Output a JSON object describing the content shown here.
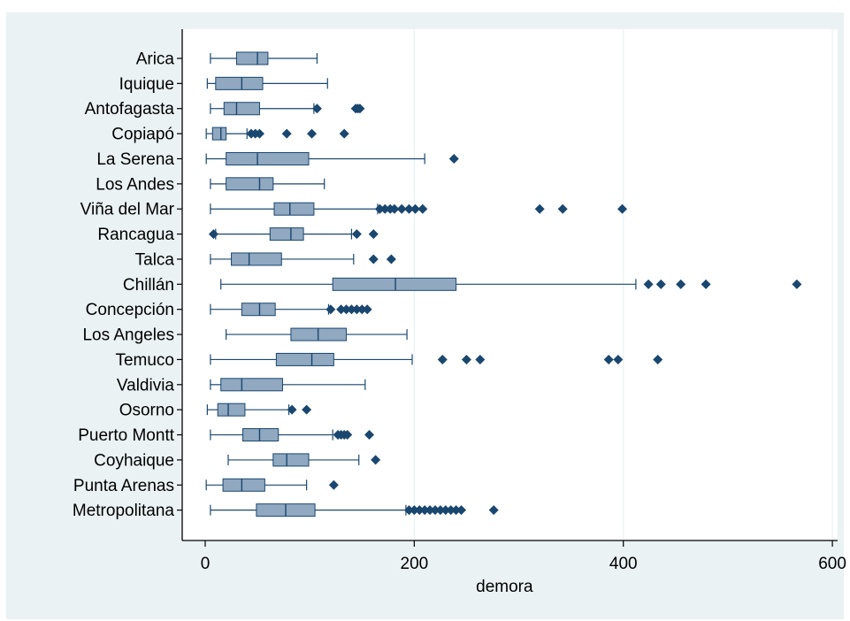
{
  "chart_data": {
    "type": "boxplot",
    "orientation": "horizontal",
    "title": "",
    "xlabel": "demora",
    "ylabel": "",
    "xlim": [
      -22,
      605
    ],
    "xticks": [
      0,
      200,
      400,
      600
    ],
    "grid": "vertical",
    "legend": "none",
    "colors": {
      "box": "#90a8c0",
      "stroke": "#1a476f",
      "outlier": "#1a476f",
      "background": "#eaf2f3",
      "plot": "#ffffff",
      "grid": "#eaf2f3"
    },
    "categories": [
      "Arica",
      "Iquique",
      "Antofagasta",
      "Copiapó",
      "La Serena",
      "Los Andes",
      "Viña del Mar",
      "Rancagua",
      "Talca",
      "Chillán",
      "Concepción",
      "Los Angeles",
      "Temuco",
      "Valdivia",
      "Osorno",
      "Puerto Montt",
      "Coyhaique",
      "Punta Arenas",
      "Metropolitana"
    ],
    "boxes": [
      {
        "min": 5,
        "q1": 30,
        "median": 50,
        "q3": 60,
        "max": 107,
        "outliers": []
      },
      {
        "min": 2,
        "q1": 10,
        "median": 35,
        "q3": 55,
        "max": 117,
        "outliers": []
      },
      {
        "min": 5,
        "q1": 18,
        "median": 30,
        "q3": 52,
        "max": 104,
        "outliers": [
          107,
          144,
          146,
          148
        ]
      },
      {
        "min": 1,
        "q1": 7,
        "median": 15,
        "q3": 20,
        "max": 40,
        "outliers": [
          44,
          48,
          52,
          78,
          102,
          133
        ]
      },
      {
        "min": 1,
        "q1": 20,
        "median": 50,
        "q3": 99,
        "max": 210,
        "outliers": [
          238
        ]
      },
      {
        "min": 5,
        "q1": 20,
        "median": 52,
        "q3": 65,
        "max": 114,
        "outliers": []
      },
      {
        "min": 5,
        "q1": 66,
        "median": 81,
        "q3": 104,
        "max": 165,
        "outliers": [
          167,
          172,
          177,
          181,
          188,
          195,
          201,
          208,
          320,
          342,
          399
        ]
      },
      {
        "min": 10,
        "q1": 62,
        "median": 82,
        "q3": 94,
        "max": 140,
        "outliers": [
          8,
          145,
          161
        ]
      },
      {
        "min": 5,
        "q1": 25,
        "median": 42,
        "q3": 73,
        "max": 142,
        "outliers": [
          161,
          178
        ]
      },
      {
        "min": 15,
        "q1": 122,
        "median": 182,
        "q3": 240,
        "max": 412,
        "outliers": [
          424,
          436,
          455,
          479,
          566
        ]
      },
      {
        "min": 5,
        "q1": 35,
        "median": 52,
        "q3": 67,
        "max": 118,
        "outliers": [
          120,
          130,
          135,
          140,
          145,
          150,
          155
        ]
      },
      {
        "min": 20,
        "q1": 82,
        "median": 108,
        "q3": 135,
        "max": 193,
        "outliers": []
      },
      {
        "min": 5,
        "q1": 68,
        "median": 102,
        "q3": 123,
        "max": 198,
        "outliers": [
          227,
          250,
          263,
          386,
          395,
          433
        ]
      },
      {
        "min": 5,
        "q1": 15,
        "median": 35,
        "q3": 74,
        "max": 153,
        "outliers": []
      },
      {
        "min": 2,
        "q1": 12,
        "median": 22,
        "q3": 38,
        "max": 80,
        "outliers": [
          83,
          97
        ]
      },
      {
        "min": 5,
        "q1": 36,
        "median": 52,
        "q3": 70,
        "max": 122,
        "outliers": [
          127,
          130,
          133,
          136,
          157
        ]
      },
      {
        "min": 22,
        "q1": 65,
        "median": 78,
        "q3": 99,
        "max": 147,
        "outliers": [
          163
        ]
      },
      {
        "min": 1,
        "q1": 17,
        "median": 35,
        "q3": 57,
        "max": 97,
        "outliers": [
          123
        ]
      },
      {
        "min": 5,
        "q1": 49,
        "median": 77,
        "q3": 105,
        "max": 192,
        "outliers": [
          195,
          200,
          205,
          210,
          215,
          220,
          225,
          230,
          235,
          240,
          245,
          276
        ]
      }
    ]
  }
}
